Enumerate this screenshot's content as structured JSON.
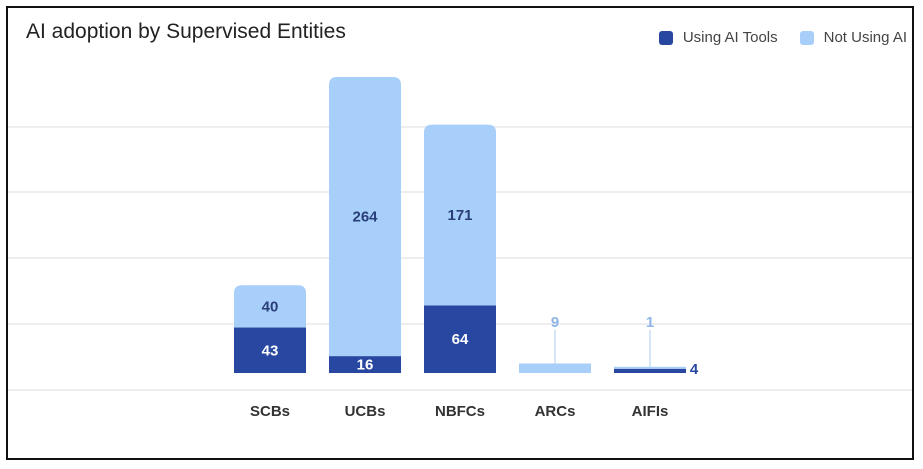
{
  "chart_data": {
    "type": "bar",
    "stacked": true,
    "title": "AI adoption by Supervised Entities",
    "categories": [
      "SCBs",
      "UCBs",
      "NBFCs",
      "ARCs",
      "AIFIs"
    ],
    "series": [
      {
        "name": "Using AI Tools",
        "color": "#2747a0",
        "values": [
          43,
          16,
          64,
          0,
          4
        ]
      },
      {
        "name": "Not Using AI",
        "color": "#a8cefa",
        "values": [
          40,
          264,
          171,
          9,
          1
        ]
      }
    ],
    "legend_position": "top-right",
    "grid": true,
    "xlabel": "",
    "ylabel": ""
  }
}
